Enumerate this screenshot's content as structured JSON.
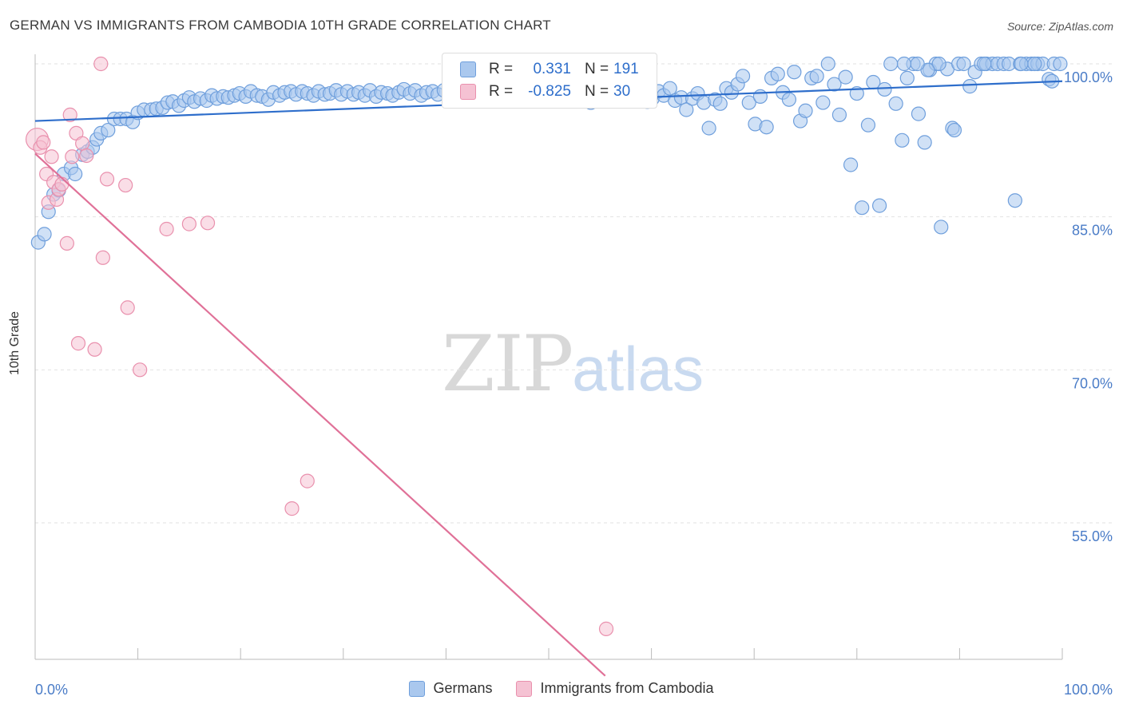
{
  "title": "GERMAN VS IMMIGRANTS FROM CAMBODIA 10TH GRADE CORRELATION CHART",
  "source": "Source: ZipAtlas.com",
  "watermark": {
    "part1": "ZIP",
    "part2": "atlas"
  },
  "colors": {
    "german": "#6f9fdc",
    "german_fill": "#aac8ee",
    "german_line": "#2e6ecb",
    "cambodia": "#e990ad",
    "cambodia_fill": "#f5c2d3",
    "cambodia_line": "#e07198",
    "tick_label": "#4a7cc7"
  },
  "stats": {
    "r_label": "R =",
    "n_label": "N =",
    "german": {
      "r": "0.331",
      "n": "191"
    },
    "cambodia": {
      "r": "-0.825",
      "n": "30"
    }
  },
  "legend": {
    "german": "Germans",
    "cambodia": "Immigrants from Cambodia"
  },
  "chart_data": {
    "type": "scatter",
    "title": "GERMAN VS IMMIGRANTS FROM CAMBODIA 10TH GRADE CORRELATION CHART",
    "xlabel": "",
    "ylabel": "10th Grade",
    "xlim": [
      0,
      100
    ],
    "ylim": [
      40,
      101
    ],
    "x_tick_labels": [
      "0.0%",
      "100.0%"
    ],
    "y_ticks": [
      55,
      70,
      85,
      100
    ],
    "y_tick_labels": [
      "55.0%",
      "70.0%",
      "85.0%",
      "100.0%"
    ],
    "grid": true,
    "series": [
      {
        "name": "Germans",
        "r": 0.331,
        "n": 191,
        "trend": {
          "x": [
            0,
            100
          ],
          "y": [
            94.4,
            98.3
          ]
        },
        "points": [
          [
            0.3,
            82.5
          ],
          [
            0.9,
            83.3
          ],
          [
            1.3,
            85.5
          ],
          [
            1.8,
            87.2
          ],
          [
            2.3,
            87.6
          ],
          [
            2.8,
            89.2
          ],
          [
            3.5,
            89.8
          ],
          [
            3.9,
            89.2
          ],
          [
            4.6,
            91.1
          ],
          [
            5.1,
            91.4
          ],
          [
            5.6,
            91.8
          ],
          [
            6.0,
            92.6
          ],
          [
            6.4,
            93.2
          ],
          [
            7.1,
            93.5
          ],
          [
            7.7,
            94.6
          ],
          [
            8.3,
            94.6
          ],
          [
            8.9,
            94.6
          ],
          [
            9.5,
            94.3
          ],
          [
            10.0,
            95.2
          ],
          [
            10.6,
            95.5
          ],
          [
            11.3,
            95.5
          ],
          [
            11.8,
            95.6
          ],
          [
            12.4,
            95.7
          ],
          [
            12.9,
            96.2
          ],
          [
            13.4,
            96.3
          ],
          [
            14.0,
            95.9
          ],
          [
            14.5,
            96.4
          ],
          [
            15.0,
            96.7
          ],
          [
            15.5,
            96.3
          ],
          [
            16.1,
            96.6
          ],
          [
            16.7,
            96.4
          ],
          [
            17.2,
            96.9
          ],
          [
            17.7,
            96.6
          ],
          [
            18.3,
            96.8
          ],
          [
            18.8,
            96.7
          ],
          [
            19.4,
            96.9
          ],
          [
            19.9,
            97.1
          ],
          [
            20.5,
            96.8
          ],
          [
            21.0,
            97.3
          ],
          [
            21.6,
            96.9
          ],
          [
            22.1,
            96.8
          ],
          [
            22.7,
            96.5
          ],
          [
            23.2,
            97.2
          ],
          [
            23.8,
            96.9
          ],
          [
            24.3,
            97.2
          ],
          [
            24.9,
            97.3
          ],
          [
            25.4,
            97.0
          ],
          [
            26.0,
            97.3
          ],
          [
            26.5,
            97.1
          ],
          [
            27.1,
            96.9
          ],
          [
            27.6,
            97.3
          ],
          [
            28.2,
            97.0
          ],
          [
            28.7,
            97.1
          ],
          [
            29.3,
            97.4
          ],
          [
            29.8,
            97.0
          ],
          [
            30.4,
            97.3
          ],
          [
            31.0,
            97.0
          ],
          [
            31.5,
            97.2
          ],
          [
            32.1,
            96.9
          ],
          [
            32.6,
            97.4
          ],
          [
            33.2,
            96.8
          ],
          [
            33.7,
            97.2
          ],
          [
            34.3,
            97.1
          ],
          [
            34.8,
            96.9
          ],
          [
            35.4,
            97.2
          ],
          [
            35.9,
            97.5
          ],
          [
            36.5,
            97.1
          ],
          [
            37.0,
            97.4
          ],
          [
            37.6,
            96.9
          ],
          [
            38.1,
            97.2
          ],
          [
            38.7,
            97.3
          ],
          [
            39.2,
            97.0
          ],
          [
            39.8,
            97.4
          ],
          [
            40.3,
            97.1
          ],
          [
            40.9,
            97.0
          ],
          [
            41.4,
            97.2
          ],
          [
            42.0,
            97.4
          ],
          [
            42.5,
            97.0
          ],
          [
            43.1,
            97.3
          ],
          [
            43.6,
            96.9
          ],
          [
            44.2,
            97.2
          ],
          [
            44.7,
            97.5
          ],
          [
            45.3,
            97.1
          ],
          [
            45.8,
            97.0
          ],
          [
            46.4,
            97.3
          ],
          [
            46.9,
            97.2
          ],
          [
            47.5,
            97.4
          ],
          [
            48.0,
            97.1
          ],
          [
            48.6,
            96.8
          ],
          [
            49.1,
            97.3
          ],
          [
            49.7,
            97.2
          ],
          [
            50.2,
            97.5
          ],
          [
            50.8,
            97.1
          ],
          [
            51.3,
            97.0
          ],
          [
            51.9,
            97.2
          ],
          [
            52.4,
            97.4
          ],
          [
            53.0,
            97.1
          ],
          [
            53.5,
            97.3
          ],
          [
            54.1,
            96.2
          ],
          [
            54.6,
            97.6
          ],
          [
            55.2,
            96.5
          ],
          [
            55.7,
            97.2
          ],
          [
            56.3,
            96.8
          ],
          [
            56.8,
            97.4
          ],
          [
            57.4,
            96.7
          ],
          [
            57.9,
            97.1
          ],
          [
            58.5,
            96.4
          ],
          [
            59.0,
            97.0
          ],
          [
            59.6,
            96.3
          ],
          [
            60.1,
            96.6
          ],
          [
            60.7,
            97.3
          ],
          [
            61.2,
            96.9
          ],
          [
            61.8,
            97.6
          ],
          [
            62.3,
            96.4
          ],
          [
            62.9,
            96.7
          ],
          [
            63.4,
            95.5
          ],
          [
            64.0,
            96.6
          ],
          [
            64.5,
            97.1
          ],
          [
            65.1,
            96.2
          ],
          [
            65.6,
            93.7
          ],
          [
            66.2,
            96.5
          ],
          [
            66.7,
            96.1
          ],
          [
            67.3,
            97.6
          ],
          [
            67.8,
            97.2
          ],
          [
            68.4,
            98.0
          ],
          [
            68.9,
            98.8
          ],
          [
            69.5,
            96.2
          ],
          [
            70.1,
            94.1
          ],
          [
            70.6,
            96.8
          ],
          [
            71.2,
            93.8
          ],
          [
            71.7,
            98.6
          ],
          [
            72.3,
            99.0
          ],
          [
            72.8,
            97.2
          ],
          [
            73.4,
            96.5
          ],
          [
            73.9,
            99.2
          ],
          [
            74.5,
            94.4
          ],
          [
            75.0,
            95.4
          ],
          [
            75.6,
            98.6
          ],
          [
            76.1,
            98.8
          ],
          [
            76.7,
            96.2
          ],
          [
            77.2,
            100.0
          ],
          [
            77.8,
            98.0
          ],
          [
            78.3,
            95.0
          ],
          [
            78.9,
            98.7
          ],
          [
            79.4,
            90.1
          ],
          [
            80.0,
            97.1
          ],
          [
            80.5,
            85.9
          ],
          [
            81.1,
            94.0
          ],
          [
            81.6,
            98.2
          ],
          [
            82.2,
            86.1
          ],
          [
            82.7,
            97.5
          ],
          [
            83.3,
            100.0
          ],
          [
            83.8,
            96.1
          ],
          [
            84.4,
            92.5
          ],
          [
            84.9,
            98.6
          ],
          [
            85.5,
            100.0
          ],
          [
            86.0,
            95.1
          ],
          [
            86.6,
            92.3
          ],
          [
            87.1,
            99.4
          ],
          [
            87.7,
            100.0
          ],
          [
            88.2,
            84.0
          ],
          [
            88.8,
            99.5
          ],
          [
            89.3,
            93.7
          ],
          [
            89.9,
            100.0
          ],
          [
            90.4,
            100.0
          ],
          [
            91.0,
            97.8
          ],
          [
            91.5,
            99.2
          ],
          [
            92.1,
            100.0
          ],
          [
            92.6,
            100.0
          ],
          [
            93.2,
            100.0
          ],
          [
            93.7,
            100.0
          ],
          [
            94.3,
            100.0
          ],
          [
            94.8,
            100.0
          ],
          [
            95.4,
            86.6
          ],
          [
            95.9,
            100.0
          ],
          [
            96.5,
            100.0
          ],
          [
            97.0,
            100.0
          ],
          [
            97.6,
            100.0
          ],
          [
            98.1,
            100.0
          ],
          [
            98.7,
            98.5
          ],
          [
            99.2,
            100.0
          ],
          [
            99.8,
            100.0
          ],
          [
            97.3,
            100.0
          ],
          [
            96.0,
            100.0
          ],
          [
            92.4,
            100.0
          ],
          [
            89.5,
            93.5
          ],
          [
            88.0,
            100.0
          ],
          [
            86.9,
            99.4
          ],
          [
            85.9,
            100.0
          ],
          [
            84.6,
            100.0
          ],
          [
            99.0,
            98.3
          ]
        ]
      },
      {
        "name": "Immigrants from Cambodia",
        "r": -0.825,
        "n": 30,
        "trend": {
          "x": [
            0,
            55.5
          ],
          "y": [
            91.2,
            40.0
          ]
        },
        "points": [
          [
            0.2,
            92.6
          ],
          [
            0.5,
            91.8
          ],
          [
            0.8,
            92.3
          ],
          [
            1.1,
            89.2
          ],
          [
            1.3,
            86.4
          ],
          [
            1.6,
            90.9
          ],
          [
            1.8,
            88.4
          ],
          [
            2.1,
            86.7
          ],
          [
            2.3,
            87.7
          ],
          [
            2.6,
            88.2
          ],
          [
            3.1,
            82.4
          ],
          [
            3.4,
            95.0
          ],
          [
            3.6,
            90.9
          ],
          [
            4.0,
            93.2
          ],
          [
            4.2,
            72.6
          ],
          [
            4.6,
            92.2
          ],
          [
            5.0,
            91.0
          ],
          [
            5.8,
            72.0
          ],
          [
            6.4,
            100.0
          ],
          [
            6.6,
            81.0
          ],
          [
            7.0,
            88.7
          ],
          [
            8.8,
            88.1
          ],
          [
            9.0,
            76.1
          ],
          [
            10.2,
            70.0
          ],
          [
            12.8,
            83.8
          ],
          [
            15.0,
            84.3
          ],
          [
            16.8,
            84.4
          ],
          [
            25.0,
            56.4
          ],
          [
            26.5,
            59.1
          ],
          [
            55.6,
            44.6
          ]
        ]
      }
    ]
  }
}
